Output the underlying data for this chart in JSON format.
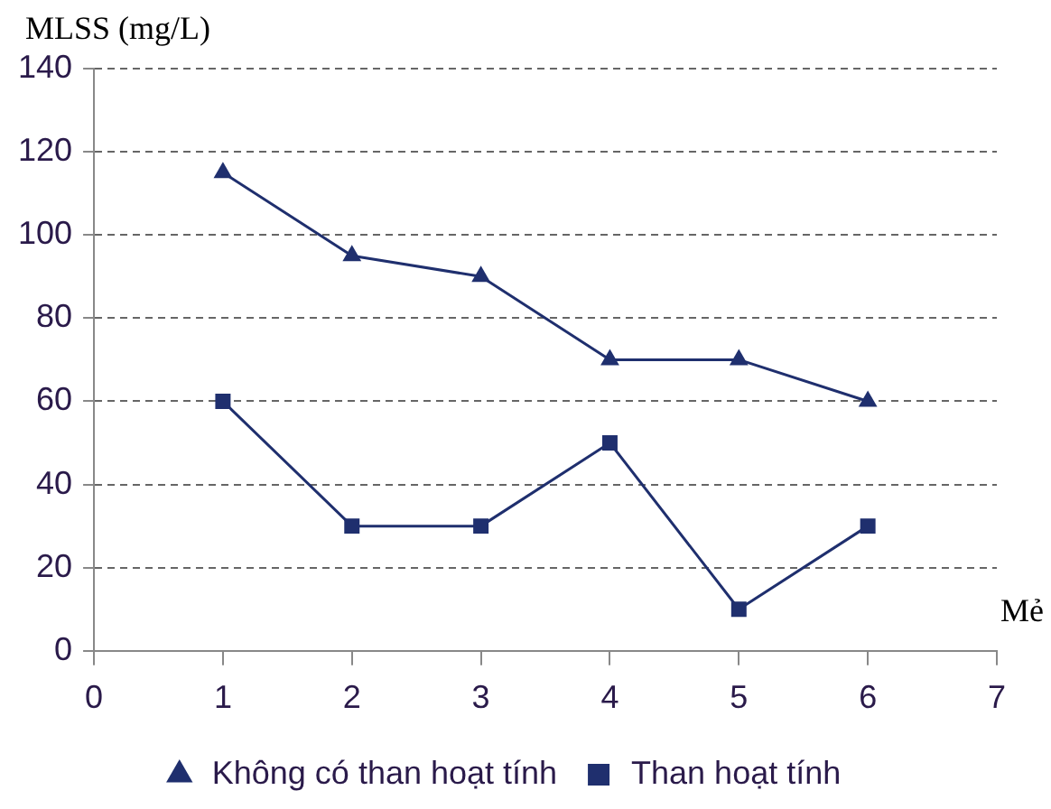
{
  "chart_data": {
    "type": "line",
    "xlabel": "Mẻ",
    "ylabel": "MLSS (mg/L)",
    "x": [
      1,
      2,
      3,
      4,
      5,
      6
    ],
    "series": [
      {
        "name": "Không có than hoạt tính",
        "color": "#1f2f6e",
        "marker": "triangle",
        "values": [
          115,
          95,
          90,
          70,
          70,
          60
        ]
      },
      {
        "name": "Than hoạt tính",
        "color": "#1f2f6e",
        "marker": "square",
        "values": [
          60,
          30,
          30,
          50,
          10,
          30
        ]
      }
    ],
    "xlim": [
      0,
      7
    ],
    "xticks": [
      0,
      1,
      2,
      3,
      4,
      5,
      6,
      7
    ],
    "ylim": [
      0,
      140
    ],
    "yticks": [
      0,
      20,
      40,
      60,
      80,
      100,
      120,
      140
    ],
    "grid": "y",
    "legend": "bottom",
    "line_style": "solid"
  }
}
